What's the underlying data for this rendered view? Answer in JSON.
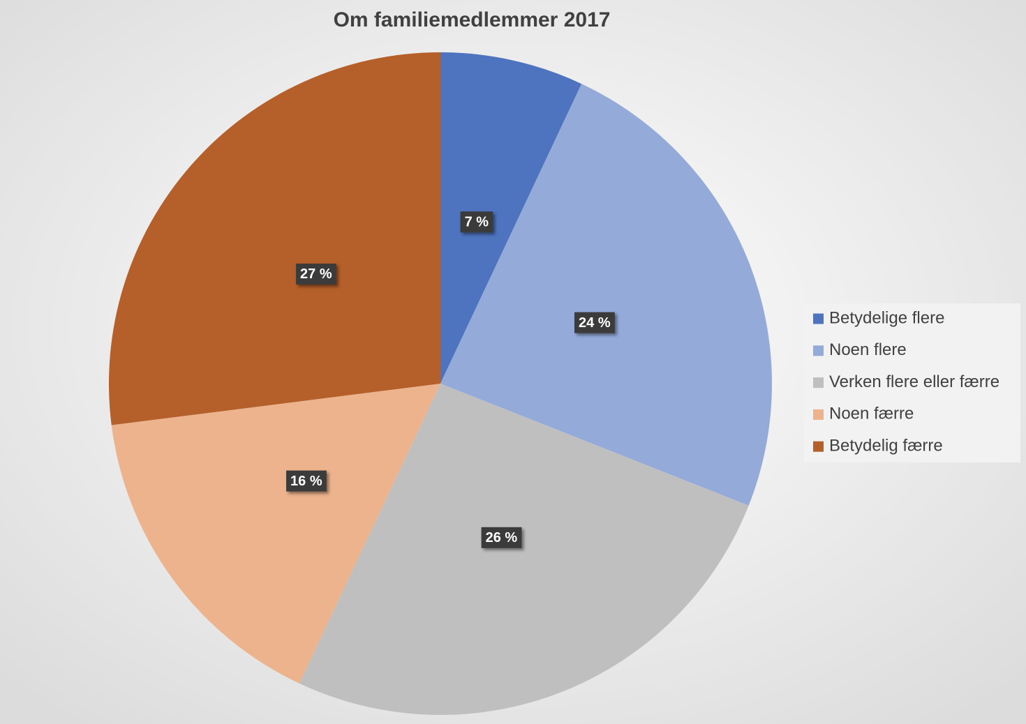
{
  "chart_data": {
    "type": "pie",
    "title": "Om familiemedlemmer 2017",
    "categories": [
      "Betydelige flere",
      "Noen flere",
      "Verken flere eller færre",
      "Noen færre",
      "Betydelig færre"
    ],
    "values": [
      7,
      24,
      26,
      16,
      27
    ],
    "value_labels": [
      "7 %",
      "24 %",
      "26 %",
      "16 %",
      "27 %"
    ],
    "colors": [
      "#4e74bf",
      "#94aad9",
      "#bfbfbf",
      "#ecb38c",
      "#b55f2a"
    ],
    "legend": "right"
  }
}
